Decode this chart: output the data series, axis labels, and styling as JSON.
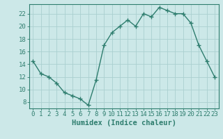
{
  "x": [
    0,
    1,
    2,
    3,
    4,
    5,
    6,
    7,
    8,
    9,
    10,
    11,
    12,
    13,
    14,
    15,
    16,
    17,
    18,
    19,
    20,
    21,
    22,
    23
  ],
  "y": [
    14.5,
    12.5,
    12.0,
    11.0,
    9.5,
    9.0,
    8.5,
    7.5,
    11.5,
    17.0,
    19.0,
    20.0,
    21.0,
    20.0,
    22.0,
    21.5,
    23.0,
    22.5,
    22.0,
    22.0,
    20.5,
    17.0,
    14.5,
    12.0
  ],
  "line_color": "#2e7d6e",
  "marker": "+",
  "markersize": 4,
  "linewidth": 1.0,
  "bg_color": "#cce8e8",
  "grid_color": "#aad0d0",
  "xlabel": "Humidex (Indice chaleur)",
  "xlim": [
    -0.5,
    23.5
  ],
  "ylim": [
    7.0,
    23.5
  ],
  "yticks": [
    8,
    10,
    12,
    14,
    16,
    18,
    20,
    22
  ],
  "xticks": [
    0,
    1,
    2,
    3,
    4,
    5,
    6,
    7,
    8,
    9,
    10,
    11,
    12,
    13,
    14,
    15,
    16,
    17,
    18,
    19,
    20,
    21,
    22,
    23
  ],
  "xlabel_fontsize": 7.5,
  "tick_fontsize": 6.5,
  "axis_color": "#2e7d6e",
  "spine_color": "#2e7d6e"
}
